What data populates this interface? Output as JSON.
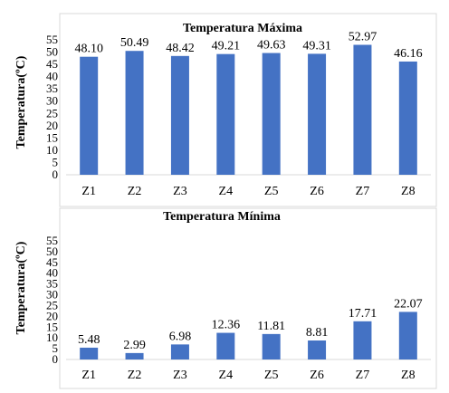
{
  "chart_data": [
    {
      "type": "bar",
      "title": "Temperatura Máxima",
      "xlabel": "",
      "ylabel": "Temperatura(ºC)",
      "categories": [
        "Z1",
        "Z2",
        "Z3",
        "Z4",
        "Z5",
        "Z6",
        "Z7",
        "Z8"
      ],
      "values": [
        48.1,
        50.49,
        48.42,
        49.21,
        49.63,
        49.31,
        52.97,
        46.16
      ],
      "value_labels": [
        "48.10",
        "50.49",
        "48.42",
        "49.21",
        "49.63",
        "49.31",
        "52.97",
        "46.16"
      ],
      "y_ticks": [
        "0",
        "5",
        "10",
        "15",
        "20",
        "25",
        "30",
        "35",
        "40",
        "45",
        "50",
        "55"
      ],
      "ylim": [
        0,
        55
      ],
      "grid": false,
      "legend": "none",
      "bar_color": "#4472C4"
    },
    {
      "type": "bar",
      "title": "Temperatura Mínima",
      "xlabel": "",
      "ylabel": "Temperatura(ºC)",
      "categories": [
        "Z1",
        "Z2",
        "Z3",
        "Z4",
        "Z5",
        "Z6",
        "Z7",
        "Z8"
      ],
      "values": [
        5.48,
        2.99,
        6.98,
        12.36,
        11.81,
        8.81,
        17.71,
        22.07
      ],
      "value_labels": [
        "5.48",
        "2.99",
        "6.98",
        "12.36",
        "11.81",
        "8.81",
        "17.71",
        "22.07"
      ],
      "y_ticks": [
        "0",
        "5",
        "10",
        "15",
        "20",
        "25",
        "30",
        "35",
        "40",
        "45",
        "50",
        "55"
      ],
      "ylim": [
        0,
        55
      ],
      "grid": false,
      "legend": "none",
      "bar_color": "#4472C4"
    }
  ]
}
